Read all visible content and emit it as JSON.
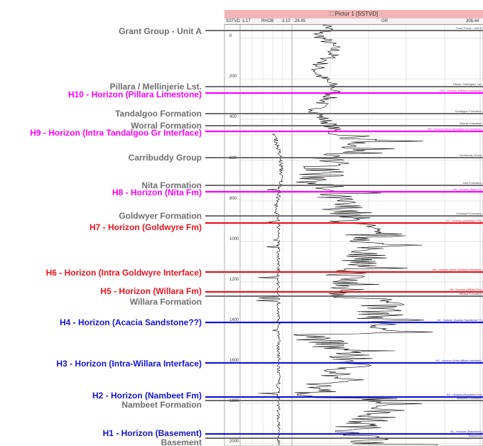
{
  "panel": {
    "title": "⛶ Pictor 1 [SSTVD]",
    "headers": {
      "depth_track": "SSTVD",
      "rhob_min": "1.17",
      "rhob_name": "RHOB",
      "rhob_max": "3.10",
      "gr_min": "-26.45",
      "gr_name": "GR",
      "gr_max": "308.44"
    },
    "depth_ticks": [
      "0",
      "200",
      "400",
      "600",
      "800",
      "1000",
      "1200",
      "1400",
      "1600",
      "1800",
      "2000"
    ]
  },
  "colors": {
    "formation": "#6e6e6e",
    "magenta": "#ff00ff",
    "red": "#e8141e",
    "blue": "#1414d2"
  },
  "markers": [
    {
      "label": "Grant Group - Unit A",
      "color": "formation",
      "right_label": "Grant Group - Unit A"
    },
    {
      "label": "Pillara / Mellinjerie Lst.",
      "color": "formation",
      "right_label": "Pillara / Mellinjerie Lst."
    },
    {
      "label": "H10 - Horizon (Pillara Limestone)",
      "color": "magenta",
      "right_label": "H10 - Horizon (Pillara Limestone)"
    },
    {
      "label": "Tandalgoo Formation",
      "color": "formation",
      "right_label": "Tandalgoo Formation"
    },
    {
      "label": "Worral Formation",
      "color": "formation",
      "right_label": "Worral Formation"
    },
    {
      "label": "H9 - Horizon (Intra Tandalgoo Gr Interface)",
      "color": "magenta",
      "right_label": "H9 - Horizon (Intra Tandalgoo Gr Interface)"
    },
    {
      "label": "Carribuddy Group",
      "color": "formation",
      "right_label": "Carribuddy Group"
    },
    {
      "label": "Nita Formation",
      "color": "formation",
      "right_label": "Nita Formation"
    },
    {
      "label": "H8 - Horizon (Nita Fm)",
      "color": "magenta",
      "right_label": "H8 - Horizon (Nita Fm)"
    },
    {
      "label": "Goldwyer Formation",
      "color": "formation",
      "right_label": "Goldwyer Formation"
    },
    {
      "label": "H7 - Horizon (Goldwyre Fm)",
      "color": "red",
      "right_label": "H7 - Horizon (Goldwyre Fm)"
    },
    {
      "label": "H6 - Horizon (Intra Goldwyre Interface)",
      "color": "red",
      "right_label": "H6 - Horizon (Intra Goldwyre Interface)"
    },
    {
      "label": "H5 - Horizon (Willara Fm)",
      "color": "red",
      "right_label": "H5 - Horizon (Willara Fm)"
    },
    {
      "label": "Willara Formation",
      "color": "formation",
      "right_label": "Willara Formation"
    },
    {
      "label": "H4 - Horizon (Acacia Sandstone??)",
      "color": "blue",
      "right_label": "H4 - Horizon (Acacia Sandstone??)"
    },
    {
      "label": "H3 - Horizon (Intra-Willara Interface)",
      "color": "blue",
      "right_label": "H3 - Horizon (Intra-Willara Interface)"
    },
    {
      "label": "H2 - Horizon (Nambeet Fm)",
      "color": "blue",
      "right_label": "H2 - Horizon (Nambeet Fm)"
    },
    {
      "label": "Nambeet Formation",
      "color": "formation",
      "right_label": "Nambeet Formation"
    },
    {
      "label": "H1 - Horizon (Basement)",
      "color": "blue",
      "right_label": "H1 - Horizon (Basement)"
    },
    {
      "label": "Basement",
      "color": "formation",
      "right_label": "Basement"
    }
  ]
}
